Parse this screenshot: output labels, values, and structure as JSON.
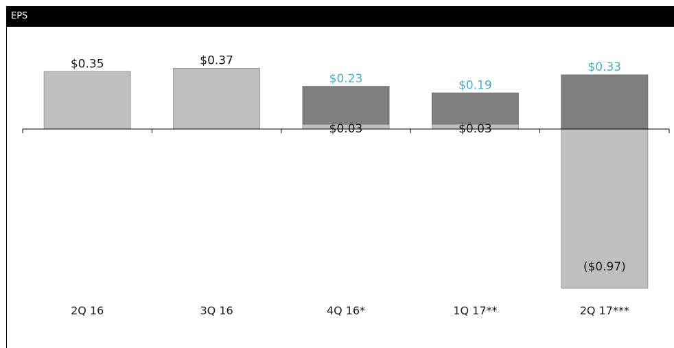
{
  "header": {
    "title": "EPS"
  },
  "chart_data": {
    "type": "bar",
    "stacked": true,
    "title": "EPS",
    "categories": [
      "2Q 16",
      "3Q 16",
      "4Q 16*",
      "1Q 17**",
      "2Q 17***"
    ],
    "series": [
      {
        "values": [
          0.35,
          0.37,
          0.03,
          0.03,
          -0.97
        ],
        "labels": [
          "$0.35",
          "$0.37",
          "$0.03",
          "$0.03",
          "($0.97)"
        ]
      },
      {
        "values": [
          0,
          0,
          0.23,
          0.19,
          0.33
        ],
        "labels": [
          "",
          "",
          "$0.23",
          "$0.19",
          "$0.33"
        ]
      }
    ],
    "ylim": [
      -1.0,
      0.45
    ],
    "grid": false,
    "colors": {
      "light_bar": "#bfbfbf",
      "dark_bar": "#7f7f7f",
      "label_dark": "#1a1a1a",
      "label_blue": "#4bacc6"
    }
  }
}
